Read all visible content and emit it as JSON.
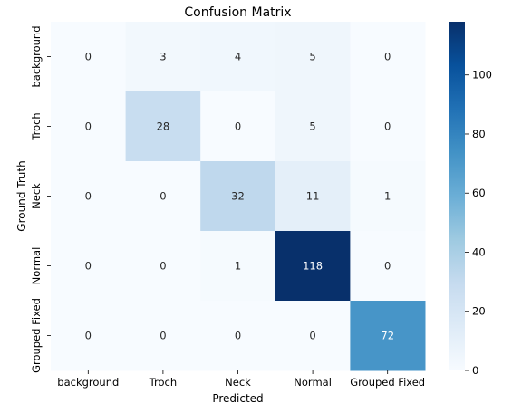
{
  "chart_data": {
    "type": "heatmap",
    "title": "Confusion Matrix",
    "xlabel": "Predicted",
    "ylabel": "Ground Truth",
    "x_categories": [
      "background",
      "Troch",
      "Neck",
      "Normal",
      "Grouped Fixed"
    ],
    "y_categories": [
      "background",
      "Troch",
      "Neck",
      "Normal",
      "Grouped Fixed"
    ],
    "matrix": [
      [
        0,
        3,
        4,
        5,
        0
      ],
      [
        0,
        28,
        0,
        5,
        0
      ],
      [
        0,
        0,
        32,
        11,
        1
      ],
      [
        0,
        0,
        1,
        118,
        0
      ],
      [
        0,
        0,
        0,
        0,
        72
      ]
    ],
    "colorscale": "Blues",
    "vmin": 0,
    "vmax": 118,
    "colorbar_ticks": [
      0,
      20,
      40,
      60,
      80,
      100
    ],
    "grid": false
  }
}
